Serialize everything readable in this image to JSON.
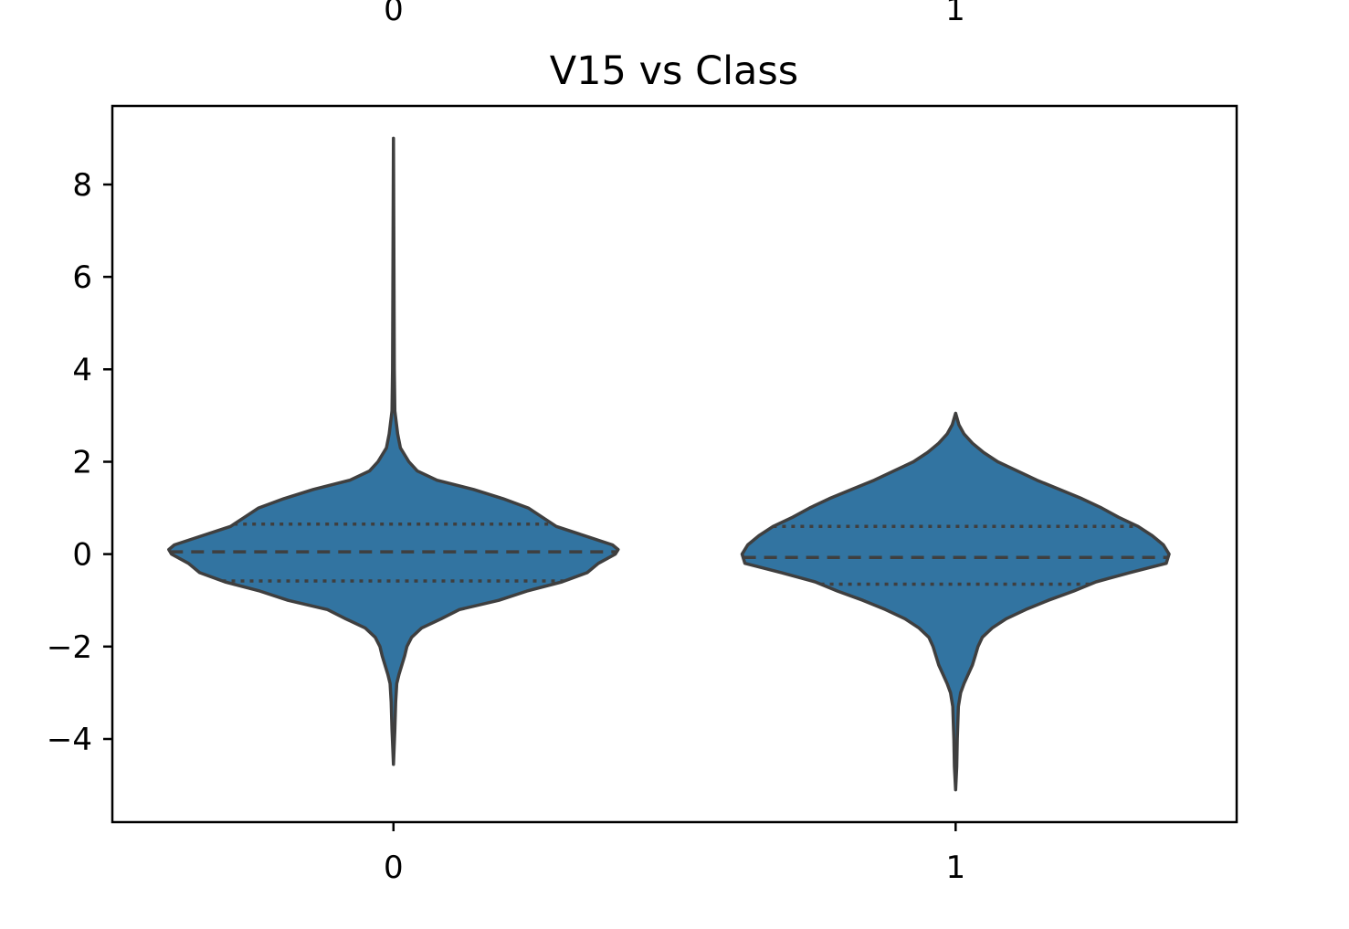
{
  "chart_data": {
    "type": "violin",
    "title": "V15 vs Class",
    "xlabel": "",
    "ylabel": "",
    "categories": [
      "0",
      "1"
    ],
    "top_categories": [
      "0",
      "1"
    ],
    "ylim": [
      -5.8,
      9.7
    ],
    "yticks": [
      -4,
      -2,
      0,
      2,
      4,
      6,
      8
    ],
    "ytick_labels": [
      "−4",
      "−2",
      "0",
      "2",
      "4",
      "6",
      "8"
    ],
    "grid": false,
    "colors": {
      "fill": "#3274a1",
      "edge": "#3f3f3f",
      "axis": "#000000"
    },
    "violins": [
      {
        "category": "0",
        "median": 0.05,
        "q1": -0.58,
        "q3": 0.65,
        "profile": [
          [
            9.0,
            0.0
          ],
          [
            4.0,
            0.003
          ],
          [
            3.1,
            0.005
          ],
          [
            2.6,
            0.015
          ],
          [
            2.3,
            0.025
          ],
          [
            2.0,
            0.055
          ],
          [
            1.8,
            0.085
          ],
          [
            1.6,
            0.155
          ],
          [
            1.4,
            0.285
          ],
          [
            1.2,
            0.39
          ],
          [
            1.0,
            0.48
          ],
          [
            0.8,
            0.53
          ],
          [
            0.6,
            0.58
          ],
          [
            0.4,
            0.68
          ],
          [
            0.2,
            0.78
          ],
          [
            0.1,
            0.8
          ],
          [
            0.0,
            0.79
          ],
          [
            -0.2,
            0.73
          ],
          [
            -0.4,
            0.69
          ],
          [
            -0.6,
            0.6
          ],
          [
            -0.8,
            0.475
          ],
          [
            -1.0,
            0.375
          ],
          [
            -1.2,
            0.235
          ],
          [
            -1.4,
            0.17
          ],
          [
            -1.6,
            0.1
          ],
          [
            -1.8,
            0.065
          ],
          [
            -2.0,
            0.048
          ],
          [
            -2.2,
            0.04
          ],
          [
            -2.4,
            0.03
          ],
          [
            -2.6,
            0.02
          ],
          [
            -2.8,
            0.012
          ],
          [
            -3.2,
            0.008
          ],
          [
            -3.8,
            0.005
          ],
          [
            -4.55,
            0.0
          ]
        ]
      },
      {
        "category": "1",
        "median": -0.07,
        "q1": -0.65,
        "q3": 0.6,
        "profile": [
          [
            3.05,
            0.0
          ],
          [
            2.8,
            0.012
          ],
          [
            2.6,
            0.03
          ],
          [
            2.4,
            0.06
          ],
          [
            2.2,
            0.1
          ],
          [
            2.0,
            0.15
          ],
          [
            1.8,
            0.22
          ],
          [
            1.6,
            0.29
          ],
          [
            1.4,
            0.37
          ],
          [
            1.2,
            0.45
          ],
          [
            1.0,
            0.52
          ],
          [
            0.8,
            0.58
          ],
          [
            0.6,
            0.65
          ],
          [
            0.4,
            0.7
          ],
          [
            0.2,
            0.74
          ],
          [
            0.0,
            0.76
          ],
          [
            -0.2,
            0.75
          ],
          [
            -0.4,
            0.62
          ],
          [
            -0.6,
            0.5
          ],
          [
            -0.8,
            0.42
          ],
          [
            -1.0,
            0.33
          ],
          [
            -1.2,
            0.25
          ],
          [
            -1.4,
            0.18
          ],
          [
            -1.6,
            0.13
          ],
          [
            -1.8,
            0.095
          ],
          [
            -2.0,
            0.08
          ],
          [
            -2.2,
            0.07
          ],
          [
            -2.4,
            0.06
          ],
          [
            -2.6,
            0.045
          ],
          [
            -2.8,
            0.03
          ],
          [
            -3.0,
            0.018
          ],
          [
            -3.3,
            0.01
          ],
          [
            -4.0,
            0.006
          ],
          [
            -4.6,
            0.004
          ],
          [
            -5.1,
            0.0
          ]
        ]
      }
    ]
  }
}
